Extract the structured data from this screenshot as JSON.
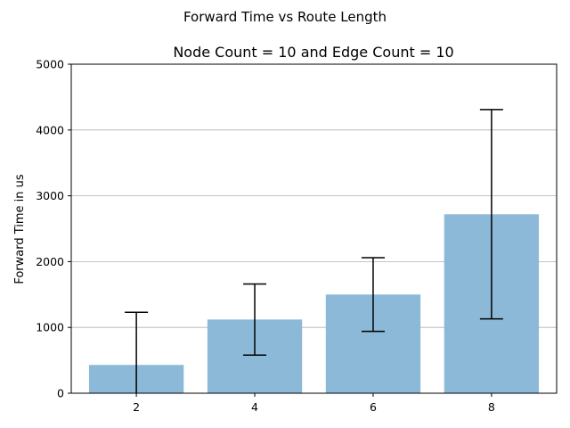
{
  "chart_data": {
    "type": "bar",
    "suptitle": "Forward Time vs Route Length",
    "title": "Node Count = 10 and Edge Count = 10",
    "xlabel": "",
    "ylabel": "Forward Time in us",
    "categories": [
      "2",
      "4",
      "6",
      "8"
    ],
    "x": [
      2,
      4,
      6,
      8
    ],
    "values": [
      430,
      1120,
      1500,
      2720
    ],
    "error": [
      800,
      540,
      560,
      1590
    ],
    "ylim": [
      0,
      5000
    ],
    "yticks": [
      0,
      1000,
      2000,
      3000,
      4000,
      5000
    ],
    "grid": "y",
    "bar_color": "#8cb9d8",
    "errorbar_color": "#000000"
  }
}
